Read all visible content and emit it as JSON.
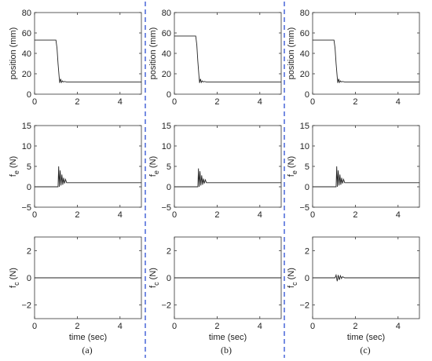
{
  "figure": {
    "columns": [
      {
        "label": "(a)",
        "time_label": "time (sec)"
      },
      {
        "label": "(b)",
        "time_label": "time (sec)"
      },
      {
        "label": "(c)",
        "time_label": "time (sec)"
      }
    ],
    "divider_color": "#3b5bd6"
  },
  "chart_data": [
    {
      "type": "line",
      "column": "(a)",
      "row": 1,
      "ylabel": "position (mm)",
      "xlabel": "",
      "xlim": [
        0,
        5
      ],
      "ylim": [
        0,
        80
      ],
      "xticks": [
        0,
        2,
        4
      ],
      "yticks": [
        0,
        20,
        40,
        60,
        80
      ],
      "series": [
        {
          "x": [
            0,
            1.0,
            1.05,
            1.1,
            1.15,
            1.18,
            1.22,
            1.26,
            1.3,
            1.35,
            1.4,
            1.5,
            5
          ],
          "y": [
            53,
            53,
            45,
            30,
            17,
            11,
            15,
            11.5,
            13,
            12,
            12.5,
            12,
            12
          ]
        }
      ]
    },
    {
      "type": "line",
      "column": "(a)",
      "row": 2,
      "ylabel": "f_e (N)",
      "xlabel": "",
      "xlim": [
        0,
        5
      ],
      "ylim": [
        -5,
        15
      ],
      "xticks": [
        0,
        2,
        4
      ],
      "yticks": [
        -5,
        0,
        5,
        10,
        15
      ],
      "series": [
        {
          "x": [
            0,
            1.1,
            1.13,
            1.16,
            1.2,
            1.24,
            1.28,
            1.32,
            1.36,
            1.4,
            1.45,
            1.5,
            1.6,
            5
          ],
          "y": [
            0,
            0,
            5,
            0,
            4,
            0.3,
            3,
            0.5,
            2.2,
            0.8,
            1.8,
            1,
            1,
            1
          ]
        }
      ]
    },
    {
      "type": "line",
      "column": "(a)",
      "row": 3,
      "ylabel": "f_c (N)",
      "xlabel": "time (sec)",
      "xlim": [
        0,
        5
      ],
      "ylim": [
        -3,
        3
      ],
      "xticks": [
        0,
        2,
        4
      ],
      "yticks": [
        -2,
        0,
        2
      ],
      "series": [
        {
          "x": [
            0,
            5
          ],
          "y": [
            0,
            0
          ]
        }
      ]
    },
    {
      "type": "line",
      "column": "(b)",
      "row": 1,
      "ylabel": "position (mm)",
      "xlabel": "",
      "xlim": [
        0,
        5
      ],
      "ylim": [
        0,
        80
      ],
      "xticks": [
        0,
        2,
        4
      ],
      "yticks": [
        0,
        20,
        40,
        60,
        80
      ],
      "series": [
        {
          "x": [
            0,
            1.0,
            1.05,
            1.1,
            1.15,
            1.18,
            1.22,
            1.26,
            1.3,
            1.35,
            1.4,
            1.5,
            5
          ],
          "y": [
            57,
            57,
            48,
            32,
            18,
            11,
            15,
            11.5,
            13,
            12,
            12.5,
            12,
            12
          ]
        }
      ]
    },
    {
      "type": "line",
      "column": "(b)",
      "row": 2,
      "ylabel": "f_e (N)",
      "xlabel": "",
      "xlim": [
        0,
        5
      ],
      "ylim": [
        -5,
        15
      ],
      "xticks": [
        0,
        2,
        4
      ],
      "yticks": [
        -5,
        0,
        5,
        10,
        15
      ],
      "series": [
        {
          "x": [
            0,
            1.1,
            1.13,
            1.16,
            1.2,
            1.24,
            1.28,
            1.32,
            1.36,
            1.4,
            1.45,
            1.5,
            1.6,
            5
          ],
          "y": [
            0,
            0,
            4.5,
            0,
            3.8,
            0.3,
            2.8,
            0.5,
            2,
            0.8,
            1.7,
            1,
            1,
            1
          ]
        }
      ]
    },
    {
      "type": "line",
      "column": "(b)",
      "row": 3,
      "ylabel": "f_c (N)",
      "xlabel": "time (sec)",
      "xlim": [
        0,
        5
      ],
      "ylim": [
        -3,
        3
      ],
      "xticks": [
        0,
        2,
        4
      ],
      "yticks": [
        -2,
        0,
        2
      ],
      "series": [
        {
          "x": [
            0,
            5
          ],
          "y": [
            0,
            0
          ]
        }
      ]
    },
    {
      "type": "line",
      "column": "(c)",
      "row": 1,
      "ylabel": "position (mm)",
      "xlabel": "",
      "xlim": [
        0,
        5
      ],
      "ylim": [
        0,
        80
      ],
      "xticks": [
        0,
        2,
        4
      ],
      "yticks": [
        0,
        20,
        40,
        60,
        80
      ],
      "series": [
        {
          "x": [
            0,
            1.0,
            1.05,
            1.1,
            1.15,
            1.18,
            1.22,
            1.26,
            1.3,
            1.35,
            1.4,
            1.5,
            5
          ],
          "y": [
            53,
            53,
            45,
            30,
            17,
            11,
            15,
            11.5,
            13,
            12,
            12.5,
            12,
            12
          ]
        }
      ]
    },
    {
      "type": "line",
      "column": "(c)",
      "row": 2,
      "ylabel": "f_e (N)",
      "xlabel": "",
      "xlim": [
        0,
        5
      ],
      "ylim": [
        -5,
        15
      ],
      "xticks": [
        0,
        2,
        4
      ],
      "yticks": [
        -5,
        0,
        5,
        10,
        15
      ],
      "series": [
        {
          "x": [
            0,
            1.1,
            1.13,
            1.16,
            1.2,
            1.24,
            1.28,
            1.32,
            1.36,
            1.4,
            1.45,
            1.5,
            1.6,
            5
          ],
          "y": [
            0,
            0,
            5,
            0,
            4,
            0.3,
            3,
            0.5,
            2.2,
            0.8,
            1.8,
            1,
            1,
            1
          ]
        }
      ]
    },
    {
      "type": "line",
      "column": "(c)",
      "row": 3,
      "ylabel": "f_c (N)",
      "xlabel": "time (sec)",
      "xlim": [
        0,
        5
      ],
      "ylim": [
        -3,
        3
      ],
      "xticks": [
        0,
        2,
        4
      ],
      "yticks": [
        -2,
        0,
        2
      ],
      "series": [
        {
          "x": [
            0,
            1.05,
            1.1,
            1.15,
            1.2,
            1.25,
            1.3,
            1.35,
            1.4,
            1.5,
            5
          ],
          "y": [
            0,
            0,
            0.2,
            -0.25,
            0.2,
            -0.15,
            0.15,
            -0.05,
            0.08,
            0,
            0
          ]
        }
      ]
    }
  ]
}
